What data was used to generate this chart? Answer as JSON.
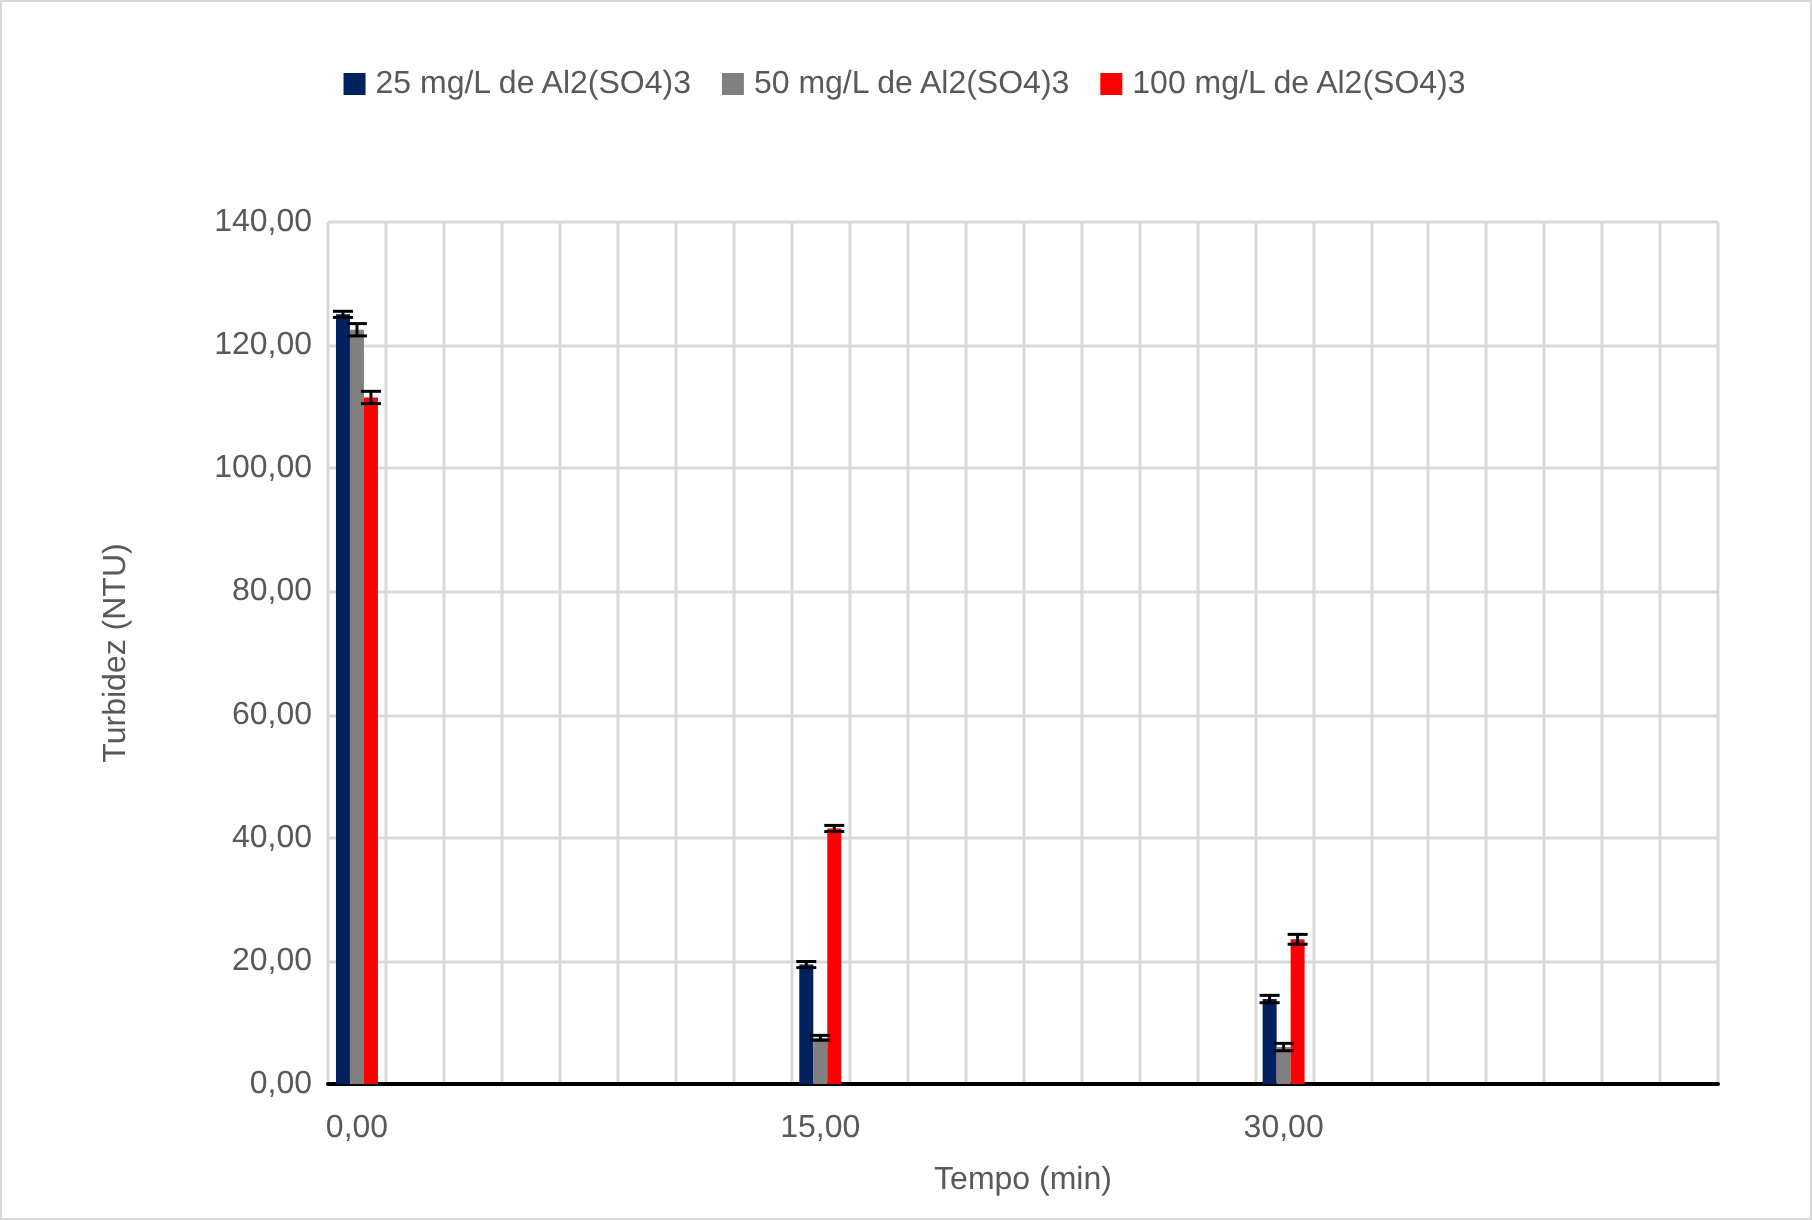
{
  "chart_data": {
    "type": "bar",
    "xlabel": "Tempo (min)",
    "ylabel": "Turbidez (NTU)",
    "categories": [
      "0,00",
      null,
      null,
      null,
      null,
      null,
      null,
      null,
      "15,00",
      null,
      null,
      null,
      null,
      null,
      null,
      null,
      "30,00",
      null,
      null,
      null,
      null,
      null,
      null,
      null
    ],
    "series": [
      {
        "name": "25 mg/L de Al2(SO4)3",
        "color": "#002060",
        "values": [
          125,
          null,
          null,
          null,
          null,
          null,
          null,
          null,
          19.4,
          null,
          null,
          null,
          null,
          null,
          null,
          null,
          13.8,
          null,
          null,
          null,
          null,
          null,
          null,
          null
        ],
        "errors": [
          0.5,
          null,
          null,
          null,
          null,
          null,
          null,
          null,
          0.5,
          null,
          null,
          null,
          null,
          null,
          null,
          null,
          0.6,
          null,
          null,
          null,
          null,
          null,
          null,
          null
        ]
      },
      {
        "name": "50 mg/L de Al2(SO4)3",
        "color": "#808080",
        "values": [
          122.5,
          null,
          null,
          null,
          null,
          null,
          null,
          null,
          7.5,
          null,
          null,
          null,
          null,
          null,
          null,
          null,
          6,
          null,
          null,
          null,
          null,
          null,
          null,
          null
        ],
        "errors": [
          1,
          null,
          null,
          null,
          null,
          null,
          null,
          null,
          0.4,
          null,
          null,
          null,
          null,
          null,
          null,
          null,
          0.6,
          null,
          null,
          null,
          null,
          null,
          null,
          null
        ]
      },
      {
        "name": "100 mg/L de Al2(SO4)3",
        "color": "#ff0000",
        "values": [
          111.5,
          null,
          null,
          null,
          null,
          null,
          null,
          null,
          41.5,
          null,
          null,
          null,
          null,
          null,
          null,
          null,
          23.5,
          null,
          null,
          null,
          null,
          null,
          null,
          null
        ],
        "errors": [
          1,
          null,
          null,
          null,
          null,
          null,
          null,
          null,
          0.5,
          null,
          null,
          null,
          null,
          null,
          null,
          null,
          0.8,
          null,
          null,
          null,
          null,
          null,
          null,
          null
        ]
      }
    ],
    "ylim": [
      0,
      140
    ],
    "yticks": [
      {
        "value": 0,
        "label": "0,00"
      },
      {
        "value": 20,
        "label": "20,00"
      },
      {
        "value": 40,
        "label": "40,00"
      },
      {
        "value": 60,
        "label": "60,00"
      },
      {
        "value": 80,
        "label": "80,00"
      },
      {
        "value": 100,
        "label": "100,00"
      },
      {
        "value": 120,
        "label": "120,00"
      },
      {
        "value": 140,
        "label": "140,00"
      }
    ],
    "grid": true,
    "legend": "top"
  }
}
